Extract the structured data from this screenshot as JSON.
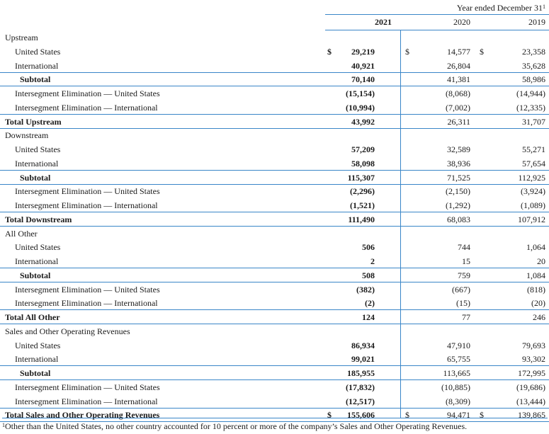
{
  "header": {
    "period_label": "Year ended December 31",
    "period_footnote_mark": "1",
    "years": [
      "2021",
      "2020",
      "2019"
    ]
  },
  "rows": [
    {
      "label": "Upstream",
      "type": "section"
    },
    {
      "label": "United States",
      "type": "item",
      "d21": "$",
      "v21": "29,219",
      "d20": "$",
      "v20": "14,577",
      "d19": "$",
      "v19": "23,358"
    },
    {
      "label": "International",
      "type": "item",
      "v21": "40,921",
      "v20": "26,804",
      "v19": "35,628"
    },
    {
      "label": "Subtotal",
      "type": "subtotal",
      "v21": "70,140",
      "v20": "41,381",
      "v19": "58,986"
    },
    {
      "label": "Intersegment Elimination — United States",
      "type": "item",
      "v21": "(15,154)",
      "v20": "(8,068)",
      "v19": "(14,944)"
    },
    {
      "label": "Intersegment Elimination — International",
      "type": "item",
      "v21": "(10,994)",
      "v20": "(7,002)",
      "v19": "(12,335)"
    },
    {
      "label": "Total Upstream",
      "type": "total",
      "v21": "43,992",
      "v20": "26,311",
      "v19": "31,707"
    },
    {
      "label": "Downstream",
      "type": "section"
    },
    {
      "label": "United States",
      "type": "item",
      "v21": "57,209",
      "v20": "32,589",
      "v19": "55,271"
    },
    {
      "label": "International",
      "type": "item",
      "v21": "58,098",
      "v20": "38,936",
      "v19": "57,654"
    },
    {
      "label": "Subtotal",
      "type": "subtotal",
      "v21": "115,307",
      "v20": "71,525",
      "v19": "112,925"
    },
    {
      "label": "Intersegment Elimination — United States",
      "type": "item",
      "v21": "(2,296)",
      "v20": "(2,150)",
      "v19": "(3,924)"
    },
    {
      "label": "Intersegment Elimination — International",
      "type": "item",
      "v21": "(1,521)",
      "v20": "(1,292)",
      "v19": "(1,089)"
    },
    {
      "label": "Total Downstream",
      "type": "total",
      "v21": "111,490",
      "v20": "68,083",
      "v19": "107,912"
    },
    {
      "label": "All Other",
      "type": "section"
    },
    {
      "label": "United States",
      "type": "item",
      "v21": "506",
      "v20": "744",
      "v19": "1,064"
    },
    {
      "label": "International",
      "type": "item",
      "v21": "2",
      "v20": "15",
      "v19": "20"
    },
    {
      "label": "Subtotal",
      "type": "subtotal",
      "v21": "508",
      "v20": "759",
      "v19": "1,084"
    },
    {
      "label": "Intersegment Elimination — United States",
      "type": "item",
      "v21": "(382)",
      "v20": "(667)",
      "v19": "(818)"
    },
    {
      "label": "Intersegment Elimination — International",
      "type": "item",
      "v21": "(2)",
      "v20": "(15)",
      "v19": "(20)"
    },
    {
      "label": "Total All Other",
      "type": "total",
      "v21": "124",
      "v20": "77",
      "v19": "246"
    },
    {
      "label": "Sales and Other Operating Revenues",
      "type": "section"
    },
    {
      "label": "United States",
      "type": "item",
      "v21": "86,934",
      "v20": "47,910",
      "v19": "79,693"
    },
    {
      "label": "International",
      "type": "item",
      "v21": "99,021",
      "v20": "65,755",
      "v19": "93,302"
    },
    {
      "label": "Subtotal",
      "type": "subtotal",
      "v21": "185,955",
      "v20": "113,665",
      "v19": "172,995"
    },
    {
      "label": "Intersegment Elimination — United States",
      "type": "item",
      "v21": "(17,832)",
      "v20": "(10,885)",
      "v19": "(19,686)"
    },
    {
      "label": "Intersegment Elimination — International",
      "type": "item",
      "v21": "(12,517)",
      "v20": "(8,309)",
      "v19": "(13,444)"
    },
    {
      "label": "Total Sales and Other Operating Revenues",
      "type": "total",
      "d21": "$",
      "v21": "155,606",
      "d20": "$",
      "v20": "94,471",
      "d19": "$",
      "v19": "139,865"
    }
  ],
  "footnote": {
    "mark": "1",
    "text": "Other than the United States, no other country accounted for 10 percent or more of the company’s Sales and Other Operating Revenues."
  },
  "colors": {
    "rule": "#3a86c8",
    "text": "#1a1a1a",
    "background": "#ffffff"
  }
}
